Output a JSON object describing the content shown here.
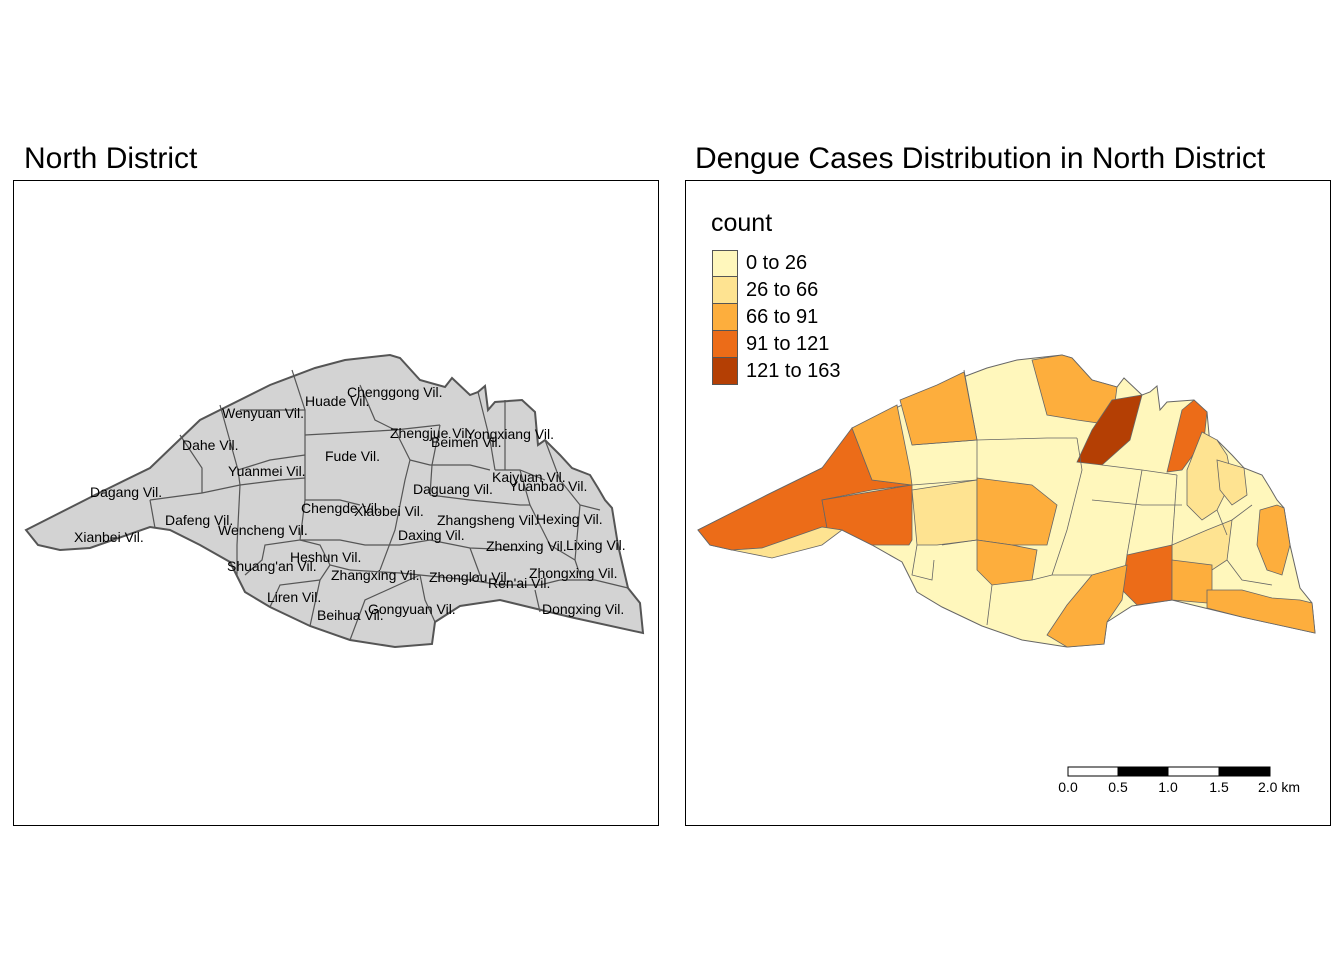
{
  "left_map": {
    "title": "North District",
    "fill": "#d3d3d3",
    "villages": [
      {
        "name": "Chenggong Vil."
      },
      {
        "name": "Huade Vil."
      },
      {
        "name": "Wenyuan Vil."
      },
      {
        "name": "Zhengjue Vil."
      },
      {
        "name": "Yongxiang Vil."
      },
      {
        "name": "Beimen Vil."
      },
      {
        "name": "Dahe Vil."
      },
      {
        "name": "Fude Vil."
      },
      {
        "name": "Yuanmei Vil."
      },
      {
        "name": "Kaiyuan Vil."
      },
      {
        "name": "Yuanbao Vil."
      },
      {
        "name": "Dagang Vil."
      },
      {
        "name": "Daguang Vil."
      },
      {
        "name": "Chengde Vil."
      },
      {
        "name": "Xiaobei Vil."
      },
      {
        "name": "Dafeng Vil."
      },
      {
        "name": "Zhangsheng Vil."
      },
      {
        "name": "Hexing Vil."
      },
      {
        "name": "Wencheng Vil."
      },
      {
        "name": "Xianbei Vil."
      },
      {
        "name": "Daxing Vil."
      },
      {
        "name": "Zhenxing Vil."
      },
      {
        "name": "Lixing Vil."
      },
      {
        "name": "Heshun Vil."
      },
      {
        "name": "Shuang'an Vil."
      },
      {
        "name": "Zhangxing Vil."
      },
      {
        "name": "Zhonglou Vil."
      },
      {
        "name": "Zhongxing Vil."
      },
      {
        "name": "Ren'ai Vil."
      },
      {
        "name": "Liren Vil."
      },
      {
        "name": "Gongyuan Vil."
      },
      {
        "name": "Dongxing Vil."
      },
      {
        "name": "Beihua Vil."
      }
    ]
  },
  "right_map": {
    "title": "Dengue Cases Distribution in North District",
    "legend": {
      "title": "count",
      "classes": [
        {
          "label": "0 to 26",
          "color": "#fff7bc"
        },
        {
          "label": "26 to 66",
          "color": "#fee391"
        },
        {
          "label": "66 to 91",
          "color": "#fdae3d"
        },
        {
          "label": "91 to 121",
          "color": "#ec6c18"
        },
        {
          "label": "121 to 163",
          "color": "#b43f04"
        }
      ]
    },
    "scale_bar": {
      "ticks": [
        "0.0",
        "0.5",
        "1.0",
        "1.5",
        "2.0 km"
      ]
    }
  }
}
